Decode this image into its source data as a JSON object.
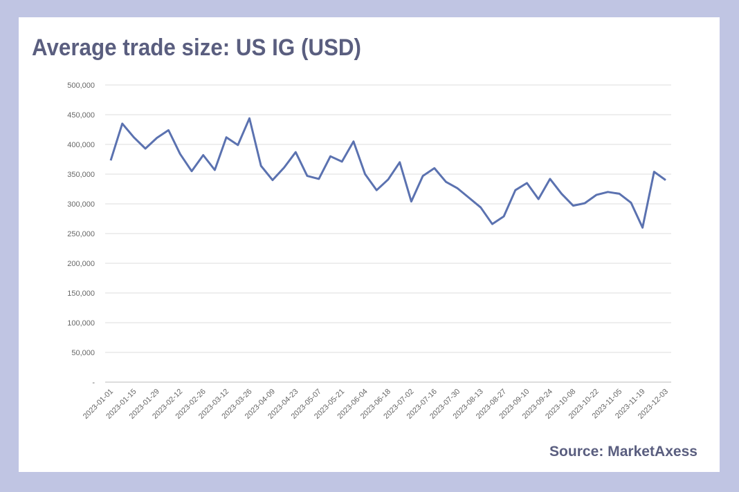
{
  "chart_data": {
    "type": "line",
    "title": "Average trade size: US IG (USD)",
    "source": "Source: MarketAxess",
    "categories": [
      "2023-01-01",
      null,
      "2023-01-15",
      null,
      "2023-01-29",
      null,
      "2023-02-12",
      null,
      "2023-02-26",
      null,
      "2023-03-12",
      null,
      "2023-03-26",
      null,
      "2023-04-09",
      null,
      "2023-04-23",
      null,
      "2023-05-07",
      null,
      "2023-05-21",
      null,
      "2023-06-04",
      null,
      "2023-06-18",
      null,
      "2023-07-02",
      null,
      "2023-07-16",
      null,
      "2023-07-30",
      null,
      "2023-08-13",
      null,
      "2023-08-27",
      null,
      "2023-09-10",
      null,
      "2023-09-24",
      null,
      "2023-10-08",
      null,
      "2023-10-22",
      null,
      "2023-11-05",
      null,
      "2023-11-19",
      null,
      "2023-12-03"
    ],
    "series": [
      {
        "color": "#5b72b0",
        "values": [
          373000,
          435000,
          412000,
          393000,
          411000,
          424000,
          384000,
          355000,
          382000,
          357000,
          412000,
          399000,
          444000,
          364000,
          340000,
          361000,
          387000,
          347000,
          342000,
          380000,
          371000,
          405000,
          350000,
          323000,
          341000,
          370000,
          304000,
          347000,
          360000,
          337000,
          326000,
          310000,
          294000,
          266000,
          279000,
          323000,
          335000,
          308000,
          342000,
          317000,
          297000,
          301000,
          315000,
          320000,
          317000,
          302000,
          260000,
          354000,
          340000
        ]
      }
    ],
    "ylim": [
      0,
      500000
    ],
    "yticks": [
      {
        "value": 0,
        "label": "-"
      },
      {
        "value": 50000,
        "label": "50,000"
      },
      {
        "value": 100000,
        "label": "100,000"
      },
      {
        "value": 150000,
        "label": "150,000"
      },
      {
        "value": 200000,
        "label": "200,000"
      },
      {
        "value": 250000,
        "label": "250,000"
      },
      {
        "value": 300000,
        "label": "300,000"
      },
      {
        "value": 350000,
        "label": "350,000"
      },
      {
        "value": 400000,
        "label": "400,000"
      },
      {
        "value": 450000,
        "label": "450,000"
      },
      {
        "value": 500000,
        "label": "500,000"
      }
    ],
    "grid": true
  }
}
